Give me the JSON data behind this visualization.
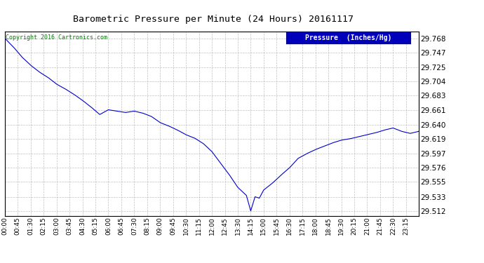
{
  "title": "Barometric Pressure per Minute (24 Hours) 20161117",
  "copyright": "Copyright 2016 Cartronics.com",
  "legend_label": "Pressure  (Inches/Hg)",
  "line_color": "#0000cc",
  "background_color": "#ffffff",
  "grid_color": "#b0b0b0",
  "ytick_values": [
    29.512,
    29.533,
    29.555,
    29.576,
    29.597,
    29.619,
    29.64,
    29.661,
    29.683,
    29.704,
    29.725,
    29.747,
    29.768
  ],
  "ylim": [
    29.505,
    29.778
  ],
  "xtick_labels": [
    "00:00",
    "00:45",
    "01:30",
    "02:15",
    "03:00",
    "03:45",
    "04:30",
    "05:15",
    "06:00",
    "06:45",
    "07:30",
    "08:15",
    "09:00",
    "09:45",
    "10:30",
    "11:15",
    "12:00",
    "12:45",
    "13:30",
    "14:15",
    "15:00",
    "15:45",
    "16:30",
    "17:15",
    "18:00",
    "18:45",
    "19:30",
    "20:15",
    "21:00",
    "21:45",
    "22:30",
    "23:15"
  ],
  "data_keypoints": [
    [
      0,
      29.768
    ],
    [
      30,
      29.755
    ],
    [
      60,
      29.74
    ],
    [
      90,
      29.728
    ],
    [
      120,
      29.718
    ],
    [
      150,
      29.71
    ],
    [
      180,
      29.7
    ],
    [
      210,
      29.693
    ],
    [
      240,
      29.685
    ],
    [
      270,
      29.676
    ],
    [
      300,
      29.666
    ],
    [
      330,
      29.655
    ],
    [
      360,
      29.662
    ],
    [
      390,
      29.66
    ],
    [
      420,
      29.658
    ],
    [
      450,
      29.66
    ],
    [
      480,
      29.657
    ],
    [
      510,
      29.652
    ],
    [
      540,
      29.643
    ],
    [
      570,
      29.638
    ],
    [
      600,
      29.632
    ],
    [
      630,
      29.625
    ],
    [
      660,
      29.62
    ],
    [
      690,
      29.612
    ],
    [
      720,
      29.6
    ],
    [
      750,
      29.583
    ],
    [
      780,
      29.566
    ],
    [
      810,
      29.547
    ],
    [
      840,
      29.535
    ],
    [
      855,
      29.512
    ],
    [
      870,
      29.533
    ],
    [
      885,
      29.531
    ],
    [
      900,
      29.543
    ],
    [
      930,
      29.553
    ],
    [
      960,
      29.565
    ],
    [
      990,
      29.576
    ],
    [
      1020,
      29.59
    ],
    [
      1050,
      29.597
    ],
    [
      1080,
      29.603
    ],
    [
      1110,
      29.608
    ],
    [
      1140,
      29.613
    ],
    [
      1170,
      29.617
    ],
    [
      1200,
      29.619
    ],
    [
      1230,
      29.622
    ],
    [
      1260,
      29.625
    ],
    [
      1290,
      29.628
    ],
    [
      1320,
      29.632
    ],
    [
      1350,
      29.635
    ],
    [
      1380,
      29.63
    ],
    [
      1410,
      29.627
    ],
    [
      1439,
      29.63
    ]
  ]
}
